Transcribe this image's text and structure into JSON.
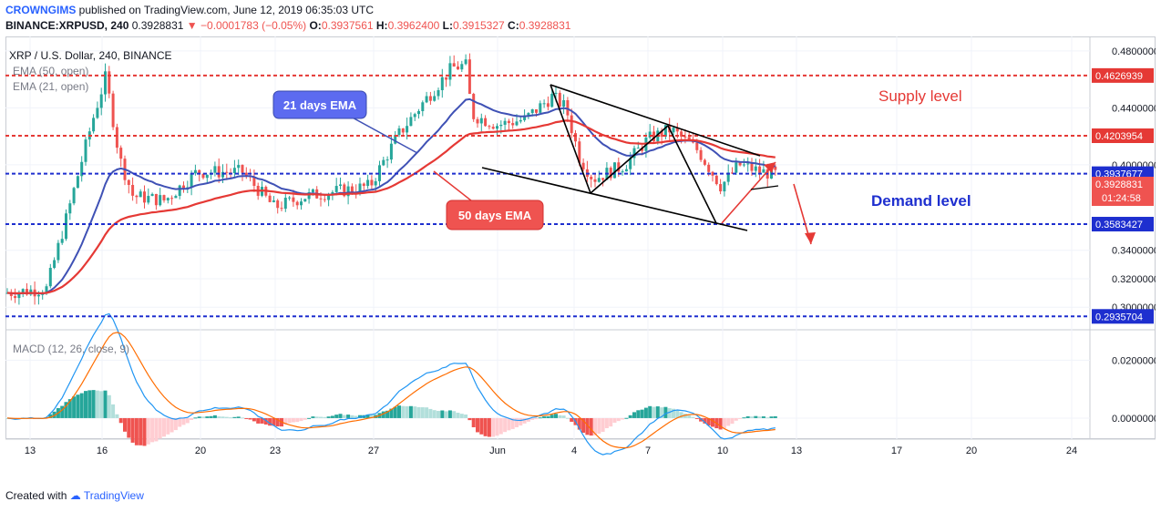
{
  "header": {
    "author": "CROWNGIMS",
    "published_text": "published on TradingView.com, June 12, 2019 06:35:03 UTC",
    "symbol": "BINANCE:XRPUSD, 240",
    "last": "0.3928831",
    "change_arrow": "▼",
    "change": "−0.0001783 (−0.05%)",
    "o_label": "O:",
    "o_value": "0.3937561",
    "h_label": "H:",
    "h_value": "0.3962400",
    "l_label": "L:",
    "l_value": "0.3915327",
    "c_label": "C:",
    "c_value": "0.3928831"
  },
  "legend": {
    "title": "XRP / U.S. Dollar, 240, BINANCE",
    "ema50": "EMA (50, open)",
    "ema21": "EMA (21, open)",
    "macd": "MACD (12, 26, close, 9)"
  },
  "annotations": {
    "supply_text": "Supply level",
    "demand_text": "Demand level",
    "ema21_callout": "21 days EMA",
    "ema50_callout": "50 days EMA"
  },
  "footer": {
    "created_with": "Created with",
    "brand": "TradingView"
  },
  "colors": {
    "red": "#e53935",
    "blue": "#1e2fcf",
    "up": "#26a69a",
    "down": "#ef5350",
    "ema21": "#3f51b5",
    "ema50": "#e53935",
    "callout_blue": "#5c6bf0",
    "callout_red": "#ef5350",
    "macd_line": "#2196f3",
    "signal_line": "#ff6d00"
  },
  "chart_data": {
    "type": "candlestick",
    "title": "XRP / U.S. Dollar, 240, BINANCE",
    "ylim": [
      0.288,
      0.485
    ],
    "y_ticks": [
      "0.4800000",
      "0.4400000",
      "0.4000000",
      "0.3400000",
      "0.3200000",
      "0.3000000"
    ],
    "x_ticks": [
      "13",
      "16",
      "20",
      "23",
      "27",
      "Jun",
      "4",
      "7",
      "10",
      "13",
      "17",
      "20",
      "24"
    ],
    "levels": [
      {
        "value": 0.4626939,
        "label": "0.4626939",
        "color": "#e53935",
        "kind": "supply"
      },
      {
        "value": 0.4203954,
        "label": "0.4203954",
        "color": "#e53935",
        "kind": "resistance"
      },
      {
        "value": 0.3937677,
        "label": "0.3937677",
        "color": "#1e2fcf",
        "kind": "current"
      },
      {
        "value": 0.3583427,
        "label": "0.3583427",
        "color": "#1e2fcf",
        "kind": "demand"
      },
      {
        "value": 0.2935704,
        "label": "0.2935704",
        "color": "#1e2fcf",
        "kind": "support"
      }
    ],
    "price_tag": {
      "value": 0.3928831,
      "label": "0.3928831",
      "countdown": "01:24:58"
    },
    "macd": {
      "title": "MACD (12, 26, close, 9)",
      "ylim": [
        -0.006,
        0.028
      ],
      "y_ticks": [
        "0.0200000",
        "0.0000000"
      ]
    }
  }
}
